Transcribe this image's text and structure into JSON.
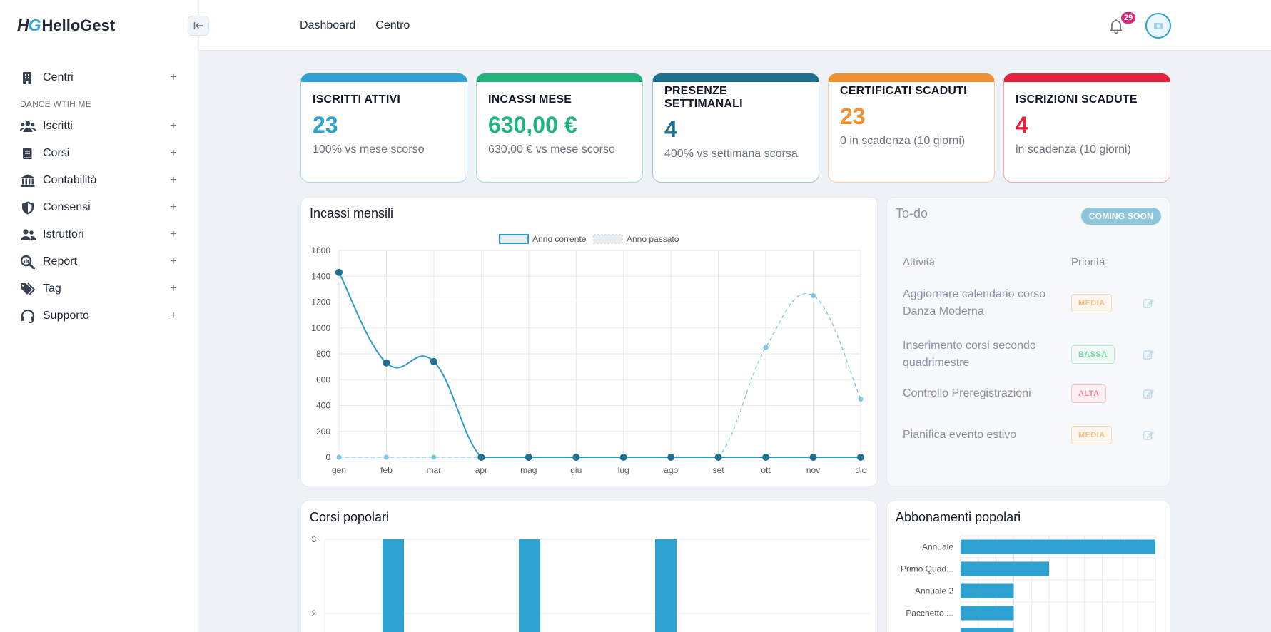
{
  "brand": {
    "mark": "HG",
    "name": "HelloGest"
  },
  "sidebar": {
    "items": [
      {
        "label": "Centri",
        "icon": "building-icon"
      },
      {
        "label": "Iscritti",
        "icon": "users-icon"
      },
      {
        "label": "Corsi",
        "icon": "book-icon"
      },
      {
        "label": "Contabilità",
        "icon": "bank-icon"
      },
      {
        "label": "Consensi",
        "icon": "shield-icon"
      },
      {
        "label": "Istruttori",
        "icon": "user-group-icon"
      },
      {
        "label": "Report",
        "icon": "search-chart-icon"
      },
      {
        "label": "Tag",
        "icon": "tags-icon"
      },
      {
        "label": "Supporto",
        "icon": "headset-icon"
      }
    ],
    "section_label": "DANCE WTIH ME",
    "expand_symbol": "+"
  },
  "topbar": {
    "nav": [
      "Dashboard",
      "Centro"
    ],
    "notifications": "29"
  },
  "kpis": [
    {
      "title": "ISCRITTI ATTIVI",
      "value": "23",
      "sub": "100% vs mese scorso",
      "color": "#2ea2d1"
    },
    {
      "title": "INCASSI MESE",
      "value": "630,00 €",
      "sub": "630,00 € vs mese scorso",
      "color": "#1fb57a"
    },
    {
      "title": "PRESENZE SETTIMANALI",
      "value": "4",
      "sub": "400% vs settimana scorsa",
      "color": "#1f6f8f"
    },
    {
      "title": "CERTIFICATI SCADUTI",
      "value": "23",
      "sub": "0 in scadenza (10 giorni)",
      "color": "#f0902e"
    },
    {
      "title": "ISCRIZIONI SCADUTE",
      "value": "4",
      "sub": "in scadenza (10 giorni)",
      "color": "#e5233f"
    }
  ],
  "incassi": {
    "title": "Incassi mensili",
    "legend": [
      "Anno corrente",
      "Anno passato"
    ]
  },
  "todo": {
    "title": "To-do",
    "badge": "COMING SOON",
    "col_activity": "Attività",
    "col_priority": "Priorità",
    "rows": [
      {
        "text": "Aggiornare calendario corso Danza Moderna",
        "priority": "MEDIA",
        "level": "media"
      },
      {
        "text": "Inserimento corsi secondo quadrimestre",
        "priority": "BASSA",
        "level": "bassa"
      },
      {
        "text": "Controllo Preregistrazioni",
        "priority": "ALTA",
        "level": "alta"
      },
      {
        "text": "Pianifica evento estivo",
        "priority": "MEDIA",
        "level": "media"
      }
    ]
  },
  "corsi": {
    "title": "Corsi popolari"
  },
  "abbonamenti": {
    "title": "Abbonamenti popolari"
  },
  "chart_data": [
    {
      "type": "line",
      "categories": [
        "gen",
        "feb",
        "mar",
        "apr",
        "mag",
        "giu",
        "lug",
        "ago",
        "set",
        "ott",
        "nov",
        "dic"
      ],
      "series": [
        {
          "name": "Anno corrente",
          "values": [
            1430,
            730,
            740,
            0,
            0,
            0,
            0,
            0,
            0,
            0,
            0,
            0
          ],
          "color": "#2e9ccb"
        },
        {
          "name": "Anno passato",
          "values": [
            0,
            0,
            0,
            0,
            0,
            0,
            0,
            0,
            0,
            850,
            1250,
            450
          ],
          "color": "#7cc6e3",
          "dashed": true
        }
      ],
      "yticks": [
        0,
        200,
        400,
        600,
        800,
        1000,
        1200,
        1400,
        1600
      ],
      "ylim": [
        0,
        1600
      ],
      "grid": true,
      "legend": "top-center"
    },
    {
      "type": "bar",
      "values_visible": [
        3,
        3,
        3
      ],
      "yticks_visible": [
        2,
        3
      ],
      "ylim_visible": [
        1.75,
        3
      ],
      "color": "#2ea2d1"
    },
    {
      "type": "bar",
      "orientation": "horizontal",
      "categories": [
        "Annuale",
        "Primo Quad...",
        "Annuale 2",
        "Pacchetto ..."
      ],
      "values": [
        11,
        5,
        3,
        3
      ],
      "xlim": [
        0,
        11
      ],
      "color": "#2ea2d1"
    }
  ]
}
